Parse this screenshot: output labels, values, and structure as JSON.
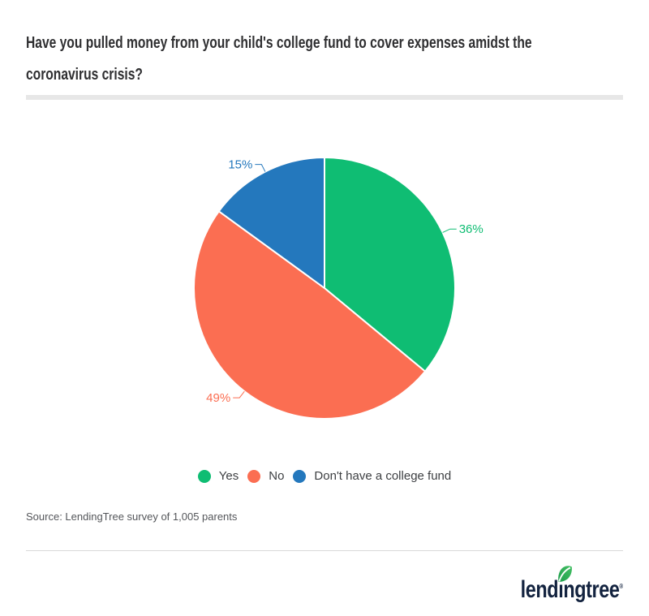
{
  "header": {
    "title_lines": [
      "Have you pulled money from your child's college fund to cover expenses amidst the",
      "coronavirus crisis?"
    ]
  },
  "chart_data": {
    "type": "pie",
    "title": "Have you pulled money from your child's college fund to cover expenses amidst the coronavirus crisis?",
    "unit": "%",
    "start_angle_deg": 0,
    "direction": "clockwise",
    "legend_position": "bottom",
    "slices": [
      {
        "label": "Yes",
        "value": 36,
        "color": "#0fbd73"
      },
      {
        "label": "No",
        "value": 49,
        "color": "#fb6e52"
      },
      {
        "label": "Don't have a college fund",
        "value": 15,
        "color": "#2478bd"
      }
    ]
  },
  "source": {
    "text": "Source: LendingTree survey of 1,005 parents"
  },
  "footer": {
    "logo_text": "lendingtree",
    "registered_mark": "®",
    "logo_color": "#13233f",
    "leaf_colors": {
      "dark": "#1e9e4d",
      "light": "#43bf63"
    }
  }
}
